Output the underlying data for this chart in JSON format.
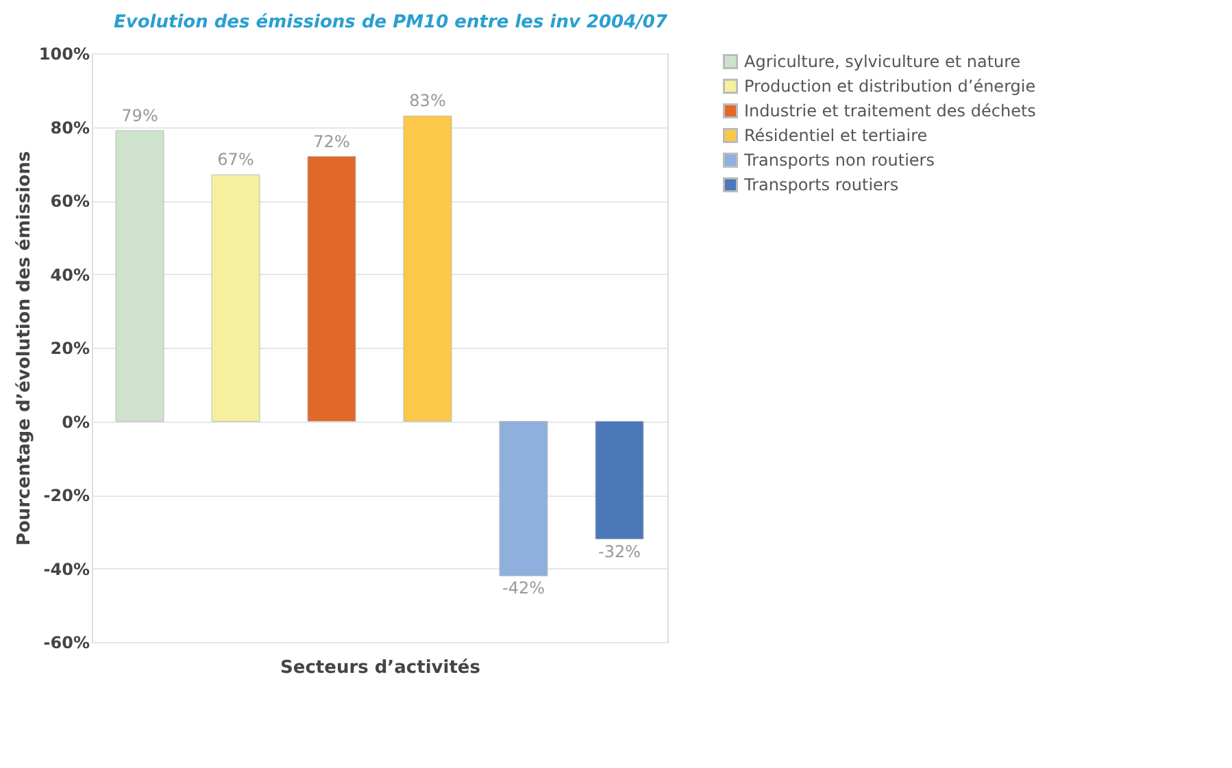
{
  "chart_data": {
    "type": "bar",
    "title": "Evolution des émissions de PM10 entre les inv 2004/07",
    "xlabel": "Secteurs d’activités",
    "ylabel": "Pourcentage d’évolution des émissions",
    "categories": [
      null,
      null,
      null,
      null,
      null,
      null
    ],
    "series": [
      {
        "name": "Agriculture, sylviculture et nature",
        "color": "#cfe3cc",
        "values": [
          79,
          null,
          null,
          null,
          null,
          null
        ],
        "value_labels": [
          "79%",
          null,
          null,
          null,
          null,
          null
        ]
      },
      {
        "name": "Production et distribution d’énergie",
        "color": "#f6f09e",
        "values": [
          null,
          67,
          null,
          null,
          null,
          null
        ],
        "value_labels": [
          null,
          "67%",
          null,
          null,
          null,
          null
        ]
      },
      {
        "name": "Industrie et traitement des déchets",
        "color": "#e0692a",
        "values": [
          null,
          null,
          72,
          null,
          null,
          null
        ],
        "value_labels": [
          null,
          null,
          "72%",
          null,
          null,
          null
        ]
      },
      {
        "name": "Résidentiel et tertiaire",
        "color": "#fbc848",
        "values": [
          null,
          null,
          null,
          83,
          null,
          null
        ],
        "value_labels": [
          null,
          null,
          null,
          "83%",
          null,
          null
        ]
      },
      {
        "name": "Transports non routiers",
        "color": "#8fb0dc",
        "values": [
          null,
          null,
          null,
          null,
          -42,
          null
        ],
        "value_labels": [
          null,
          null,
          null,
          null,
          "-42%",
          null
        ]
      },
      {
        "name": "Transports routiers",
        "color": "#4a78b8",
        "values": [
          null,
          null,
          null,
          null,
          null,
          -32
        ],
        "value_labels": [
          null,
          null,
          null,
          null,
          null,
          "-32%"
        ]
      }
    ],
    "ylim": [
      -60,
      100
    ],
    "yticks": [
      {
        "value": -60,
        "label": "-60%"
      },
      {
        "value": -40,
        "label": "-40%"
      },
      {
        "value": -20,
        "label": "-20%"
      },
      {
        "value": 0,
        "label": "0%"
      },
      {
        "value": 20,
        "label": "20%"
      },
      {
        "value": 40,
        "label": "40%"
      },
      {
        "value": 60,
        "label": "60%"
      },
      {
        "value": 80,
        "label": "80%"
      },
      {
        "value": 100,
        "label": "100%"
      }
    ],
    "grid": "y",
    "legend": "right"
  }
}
